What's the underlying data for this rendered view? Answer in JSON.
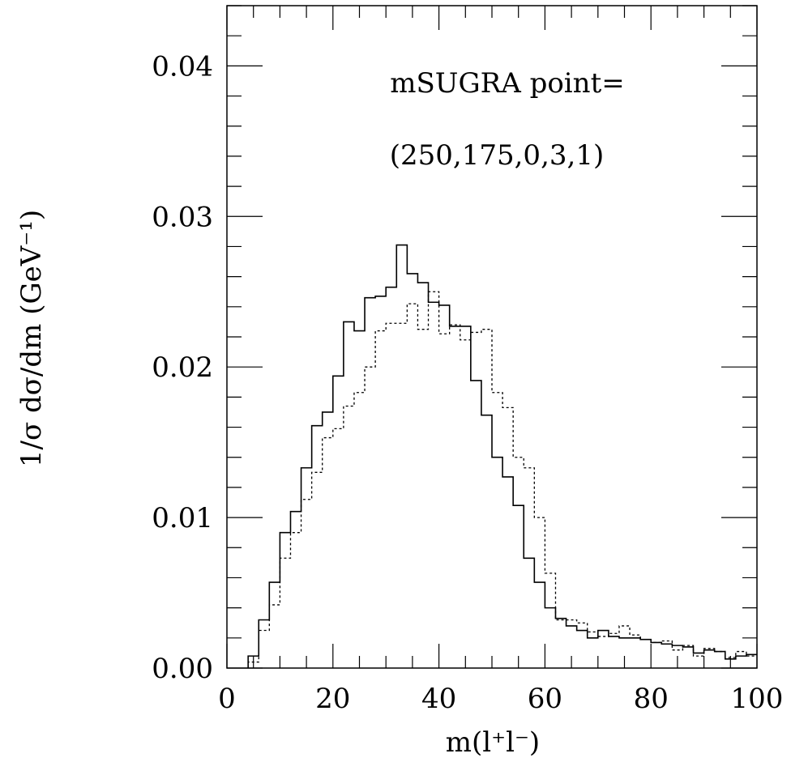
{
  "chart_data": {
    "type": "line",
    "step": true,
    "title": "",
    "annotation_lines": [
      "mSUGRA point=",
      "(250,175,0,3,1)"
    ],
    "xlabel": "m(l⁺l⁻)",
    "ylabel": "1/σ dσ/dm (GeV⁻¹)",
    "xlim": [
      0,
      100
    ],
    "ylim": [
      0,
      0.044
    ],
    "x_ticks": [
      "0",
      "20",
      "40",
      "60",
      "80",
      "100"
    ],
    "y_ticks": [
      "0.00",
      "0.01",
      "0.02",
      "0.03",
      "0.04"
    ],
    "grid": false,
    "bin_edges": [
      4,
      6,
      8,
      10,
      12,
      14,
      16,
      18,
      20,
      22,
      24,
      26,
      28,
      30,
      32,
      34,
      36,
      38,
      40,
      42,
      44,
      46,
      48,
      50,
      52,
      54,
      56,
      58,
      60,
      62,
      64,
      66,
      68,
      70,
      72,
      74,
      76,
      78,
      80,
      82,
      84,
      86,
      88,
      90,
      92,
      94,
      96,
      98,
      100
    ],
    "series": [
      {
        "style": "solid",
        "values": [
          0.0008,
          0.0032,
          0.0057,
          0.009,
          0.0104,
          0.0133,
          0.0161,
          0.017,
          0.0194,
          0.023,
          0.0224,
          0.0246,
          0.0247,
          0.0253,
          0.0281,
          0.0262,
          0.0256,
          0.0243,
          0.0241,
          0.0227,
          0.0227,
          0.0191,
          0.0168,
          0.014,
          0.0127,
          0.0108,
          0.0073,
          0.0057,
          0.004,
          0.0033,
          0.0028,
          0.0025,
          0.002,
          0.0025,
          0.0021,
          0.002,
          0.002,
          0.0019,
          0.0017,
          0.0016,
          0.0015,
          0.0014,
          0.001,
          0.0012,
          0.0011,
          0.0006,
          0.0008,
          0.0009
        ]
      },
      {
        "style": "dotted",
        "values": [
          0.0004,
          0.0025,
          0.0042,
          0.0073,
          0.009,
          0.0112,
          0.013,
          0.0153,
          0.0159,
          0.0174,
          0.0183,
          0.02,
          0.0224,
          0.0229,
          0.0229,
          0.0242,
          0.0225,
          0.025,
          0.0222,
          0.0228,
          0.0218,
          0.0223,
          0.0225,
          0.0183,
          0.0173,
          0.014,
          0.0133,
          0.01,
          0.0063,
          0.0032,
          0.0032,
          0.003,
          0.0024,
          0.0021,
          0.0023,
          0.0028,
          0.0022,
          0.0019,
          0.0017,
          0.0018,
          0.0012,
          0.0015,
          0.0008,
          0.0013,
          0.0011,
          0.0007,
          0.0011,
          0.0008
        ]
      }
    ]
  }
}
